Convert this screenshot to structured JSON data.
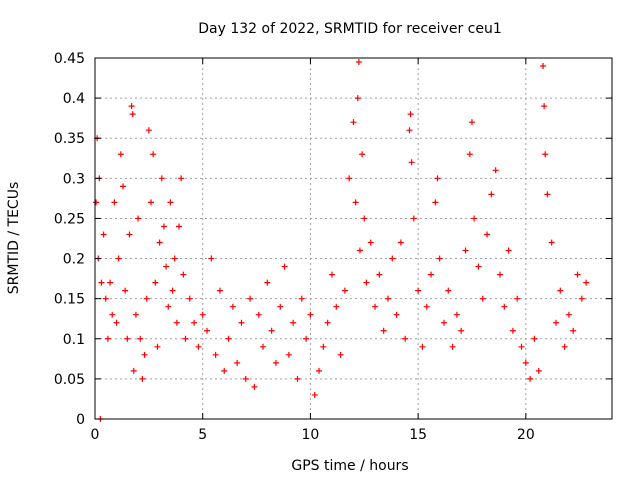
{
  "chart_data": {
    "type": "scatter",
    "title": "Day 132 of 2022, SRMTID for receiver ceu1",
    "xlabel": "GPS time / hours",
    "ylabel": "SRMTID / TECUs",
    "xlim": [
      0,
      24
    ],
    "ylim": [
      0,
      0.45
    ],
    "xticks": [
      0,
      5,
      10,
      15,
      20
    ],
    "xtick_labels": [
      "0",
      "5",
      "10",
      "15",
      "20"
    ],
    "yticks": [
      0,
      0.05,
      0.1,
      0.15,
      0.2,
      0.25,
      0.3,
      0.35,
      0.4,
      0.45
    ],
    "ytick_labels": [
      "0",
      "0.05",
      "0.1",
      "0.15",
      "0.2",
      "0.25",
      "0.3",
      "0.35",
      "0.4",
      "0.45"
    ],
    "grid": true,
    "marker": "+",
    "color": "#ff0000",
    "series": [
      {
        "name": "SRMTID",
        "points": [
          [
            0.05,
            0.27
          ],
          [
            0.1,
            0.35
          ],
          [
            0.15,
            0.2
          ],
          [
            0.2,
            0.3
          ],
          [
            0.25,
            0.0
          ],
          [
            0.3,
            0.17
          ],
          [
            0.4,
            0.23
          ],
          [
            0.5,
            0.15
          ],
          [
            0.6,
            0.1
          ],
          [
            0.7,
            0.17
          ],
          [
            0.8,
            0.13
          ],
          [
            0.9,
            0.27
          ],
          [
            1.0,
            0.12
          ],
          [
            1.1,
            0.2
          ],
          [
            1.2,
            0.33
          ],
          [
            1.3,
            0.29
          ],
          [
            1.4,
            0.16
          ],
          [
            1.5,
            0.1
          ],
          [
            1.6,
            0.23
          ],
          [
            1.7,
            0.39
          ],
          [
            1.75,
            0.38
          ],
          [
            1.8,
            0.06
          ],
          [
            1.9,
            0.13
          ],
          [
            2.0,
            0.25
          ],
          [
            2.1,
            0.1
          ],
          [
            2.2,
            0.05
          ],
          [
            2.3,
            0.08
          ],
          [
            2.4,
            0.15
          ],
          [
            2.5,
            0.36
          ],
          [
            2.6,
            0.27
          ],
          [
            2.7,
            0.33
          ],
          [
            2.8,
            0.17
          ],
          [
            2.9,
            0.09
          ],
          [
            3.0,
            0.22
          ],
          [
            3.1,
            0.3
          ],
          [
            3.2,
            0.24
          ],
          [
            3.3,
            0.19
          ],
          [
            3.4,
            0.14
          ],
          [
            3.5,
            0.27
          ],
          [
            3.6,
            0.16
          ],
          [
            3.7,
            0.2
          ],
          [
            3.8,
            0.12
          ],
          [
            3.9,
            0.24
          ],
          [
            4.0,
            0.3
          ],
          [
            4.1,
            0.18
          ],
          [
            4.2,
            0.1
          ],
          [
            4.4,
            0.15
          ],
          [
            4.6,
            0.12
          ],
          [
            4.8,
            0.09
          ],
          [
            5.0,
            0.13
          ],
          [
            5.2,
            0.11
          ],
          [
            5.4,
            0.2
          ],
          [
            5.6,
            0.08
          ],
          [
            5.8,
            0.16
          ],
          [
            6.0,
            0.06
          ],
          [
            6.2,
            0.1
          ],
          [
            6.4,
            0.14
          ],
          [
            6.6,
            0.07
          ],
          [
            6.8,
            0.12
          ],
          [
            7.0,
            0.05
          ],
          [
            7.2,
            0.15
          ],
          [
            7.4,
            0.04
          ],
          [
            7.6,
            0.13
          ],
          [
            7.8,
            0.09
          ],
          [
            8.0,
            0.17
          ],
          [
            8.2,
            0.11
          ],
          [
            8.4,
            0.07
          ],
          [
            8.6,
            0.14
          ],
          [
            8.8,
            0.19
          ],
          [
            9.0,
            0.08
          ],
          [
            9.2,
            0.12
          ],
          [
            9.4,
            0.05
          ],
          [
            9.6,
            0.15
          ],
          [
            9.8,
            0.1
          ],
          [
            10.0,
            0.13
          ],
          [
            10.2,
            0.03
          ],
          [
            10.4,
            0.06
          ],
          [
            10.6,
            0.09
          ],
          [
            10.8,
            0.12
          ],
          [
            11.0,
            0.18
          ],
          [
            11.2,
            0.14
          ],
          [
            11.4,
            0.08
          ],
          [
            11.6,
            0.16
          ],
          [
            11.8,
            0.3
          ],
          [
            12.0,
            0.37
          ],
          [
            12.1,
            0.27
          ],
          [
            12.2,
            0.4
          ],
          [
            12.25,
            0.445
          ],
          [
            12.3,
            0.21
          ],
          [
            12.4,
            0.33
          ],
          [
            12.5,
            0.25
          ],
          [
            12.6,
            0.17
          ],
          [
            12.8,
            0.22
          ],
          [
            13.0,
            0.14
          ],
          [
            13.2,
            0.18
          ],
          [
            13.4,
            0.11
          ],
          [
            13.6,
            0.15
          ],
          [
            13.8,
            0.2
          ],
          [
            14.0,
            0.13
          ],
          [
            14.2,
            0.22
          ],
          [
            14.4,
            0.1
          ],
          [
            14.6,
            0.36
          ],
          [
            14.65,
            0.38
          ],
          [
            14.7,
            0.32
          ],
          [
            14.8,
            0.25
          ],
          [
            15.0,
            0.16
          ],
          [
            15.2,
            0.09
          ],
          [
            15.4,
            0.14
          ],
          [
            15.6,
            0.18
          ],
          [
            15.8,
            0.27
          ],
          [
            15.9,
            0.3
          ],
          [
            16.0,
            0.2
          ],
          [
            16.2,
            0.12
          ],
          [
            16.4,
            0.16
          ],
          [
            16.6,
            0.09
          ],
          [
            16.8,
            0.13
          ],
          [
            17.0,
            0.11
          ],
          [
            17.2,
            0.21
          ],
          [
            17.4,
            0.33
          ],
          [
            17.5,
            0.37
          ],
          [
            17.6,
            0.25
          ],
          [
            17.8,
            0.19
          ],
          [
            18.0,
            0.15
          ],
          [
            18.2,
            0.23
          ],
          [
            18.4,
            0.28
          ],
          [
            18.6,
            0.31
          ],
          [
            18.8,
            0.18
          ],
          [
            19.0,
            0.14
          ],
          [
            19.2,
            0.21
          ],
          [
            19.4,
            0.11
          ],
          [
            19.6,
            0.15
          ],
          [
            19.8,
            0.09
          ],
          [
            20.0,
            0.07
          ],
          [
            20.2,
            0.05
          ],
          [
            20.4,
            0.1
          ],
          [
            20.6,
            0.06
          ],
          [
            20.8,
            0.44
          ],
          [
            20.85,
            0.39
          ],
          [
            20.9,
            0.33
          ],
          [
            21.0,
            0.28
          ],
          [
            21.2,
            0.22
          ],
          [
            21.4,
            0.12
          ],
          [
            21.6,
            0.16
          ],
          [
            21.8,
            0.09
          ],
          [
            22.0,
            0.13
          ],
          [
            22.2,
            0.11
          ],
          [
            22.4,
            0.18
          ],
          [
            22.6,
            0.15
          ],
          [
            22.8,
            0.17
          ]
        ]
      }
    ]
  }
}
